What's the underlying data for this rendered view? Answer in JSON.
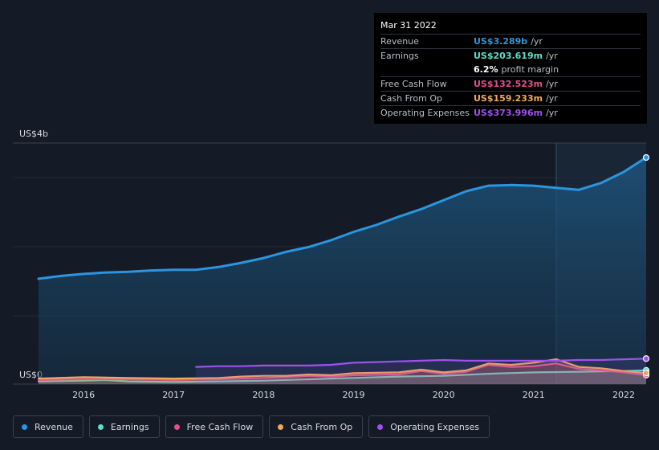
{
  "tooltip": {
    "date": "Mar 31 2022",
    "rows": [
      {
        "label": "Revenue",
        "value": "US$3.289b",
        "unit": "/yr",
        "color": "#2b95e0"
      },
      {
        "label": "Earnings",
        "value": "US$203.619m",
        "unit": "/yr",
        "color": "#5ce0c8"
      },
      {
        "label": "",
        "value": "6.2%",
        "unit": "profit margin",
        "color": "#ffffff"
      },
      {
        "label": "Free Cash Flow",
        "value": "US$132.523m",
        "unit": "/yr",
        "color": "#e0508c"
      },
      {
        "label": "Cash From Op",
        "value": "US$159.233m",
        "unit": "/yr",
        "color": "#f0a860"
      },
      {
        "label": "Operating Expenses",
        "value": "US$373.996m",
        "unit": "/yr",
        "color": "#a050f0"
      }
    ]
  },
  "chart_data": {
    "type": "area",
    "title": "",
    "y_top_label": "US$4b",
    "y_bottom_label": "US$0",
    "ylim": [
      0,
      3.5
    ],
    "xlim": [
      2015.5,
      2022.25
    ],
    "x_ticks": [
      "2016",
      "2017",
      "2018",
      "2019",
      "2020",
      "2021",
      "2022"
    ],
    "forecast_start": 2021.25,
    "series": [
      {
        "name": "Revenue",
        "color": "#2b95e0",
        "x": [
          2015.5,
          2015.75,
          2016.0,
          2016.25,
          2016.5,
          2016.75,
          2017.0,
          2017.25,
          2017.5,
          2017.75,
          2018.0,
          2018.25,
          2018.5,
          2018.75,
          2019.0,
          2019.25,
          2019.5,
          2019.75,
          2020.0,
          2020.25,
          2020.5,
          2020.75,
          2021.0,
          2021.25,
          2021.5,
          2021.75,
          2022.0,
          2022.25
        ],
        "values": [
          1.53,
          1.57,
          1.6,
          1.62,
          1.63,
          1.65,
          1.66,
          1.66,
          1.7,
          1.76,
          1.83,
          1.92,
          1.99,
          2.09,
          2.21,
          2.31,
          2.43,
          2.54,
          2.67,
          2.8,
          2.88,
          2.89,
          2.88,
          2.85,
          2.82,
          2.92,
          3.08,
          3.29
        ]
      },
      {
        "name": "Earnings",
        "color": "#5ce0c8",
        "x": [
          2015.5,
          2016.0,
          2016.25,
          2016.5,
          2017.0,
          2017.5,
          2018.0,
          2018.5,
          2019.0,
          2019.5,
          2020.0,
          2020.5,
          2021.0,
          2021.5,
          2022.0,
          2022.25
        ],
        "values": [
          0.04,
          0.05,
          0.06,
          0.04,
          0.03,
          0.04,
          0.05,
          0.07,
          0.09,
          0.11,
          0.12,
          0.15,
          0.17,
          0.18,
          0.19,
          0.2
        ]
      },
      {
        "name": "Free Cash Flow",
        "color": "#e0508c",
        "x": [
          2015.5,
          2016.0,
          2016.5,
          2017.0,
          2017.5,
          2017.75,
          2018.0,
          2018.25,
          2018.5,
          2018.75,
          2019.0,
          2019.5,
          2019.75,
          2020.0,
          2020.25,
          2020.5,
          2020.75,
          2021.0,
          2021.25,
          2021.5,
          2021.75,
          2022.0,
          2022.25
        ],
        "values": [
          0.06,
          0.07,
          0.07,
          0.06,
          0.07,
          0.08,
          0.09,
          0.1,
          0.12,
          0.11,
          0.13,
          0.14,
          0.19,
          0.15,
          0.18,
          0.28,
          0.25,
          0.26,
          0.3,
          0.22,
          0.2,
          0.17,
          0.13
        ]
      },
      {
        "name": "Cash From Op",
        "color": "#f0a860",
        "x": [
          2015.5,
          2016.0,
          2016.5,
          2017.0,
          2017.5,
          2017.75,
          2018.0,
          2018.25,
          2018.5,
          2018.75,
          2019.0,
          2019.5,
          2019.75,
          2020.0,
          2020.25,
          2020.5,
          2020.75,
          2021.0,
          2021.25,
          2021.5,
          2021.75,
          2022.0,
          2022.25
        ],
        "values": [
          0.08,
          0.1,
          0.09,
          0.08,
          0.09,
          0.11,
          0.12,
          0.12,
          0.14,
          0.13,
          0.16,
          0.17,
          0.21,
          0.17,
          0.2,
          0.3,
          0.28,
          0.31,
          0.36,
          0.25,
          0.23,
          0.19,
          0.16
        ]
      },
      {
        "name": "Operating Expenses",
        "color": "#a050f0",
        "x": [
          2017.25,
          2017.5,
          2017.75,
          2018.0,
          2018.25,
          2018.5,
          2018.75,
          2019.0,
          2019.25,
          2019.5,
          2019.75,
          2020.0,
          2020.25,
          2020.5,
          2020.75,
          2021.0,
          2021.25,
          2021.5,
          2021.75,
          2022.0,
          2022.25
        ],
        "values": [
          0.25,
          0.26,
          0.26,
          0.27,
          0.27,
          0.27,
          0.28,
          0.31,
          0.32,
          0.33,
          0.34,
          0.35,
          0.34,
          0.34,
          0.34,
          0.34,
          0.34,
          0.35,
          0.35,
          0.36,
          0.37
        ]
      }
    ]
  },
  "legend": [
    {
      "label": "Revenue",
      "color": "#2b95e0"
    },
    {
      "label": "Earnings",
      "color": "#5ce0c8"
    },
    {
      "label": "Free Cash Flow",
      "color": "#e0508c"
    },
    {
      "label": "Cash From Op",
      "color": "#f0a860"
    },
    {
      "label": "Operating Expenses",
      "color": "#a050f0"
    }
  ]
}
